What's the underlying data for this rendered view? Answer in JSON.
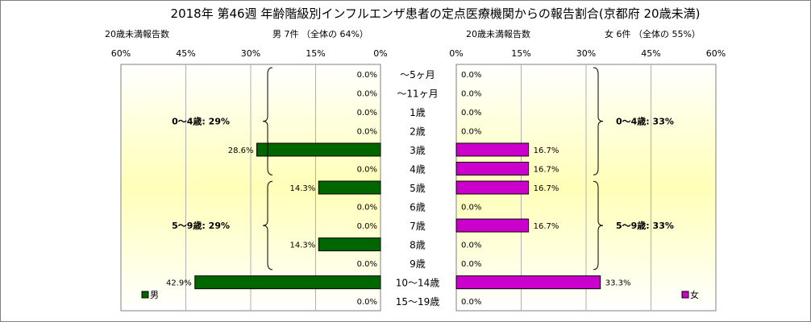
{
  "chart_data": {
    "type": "bar",
    "title": "2018年 第46週 年齢階級別インフルエンザ患者の定点医療機関からの報告割合(京都府 20歳未満)",
    "categories": [
      "～5ヶ月",
      "～11ヶ月",
      "1歳",
      "2歳",
      "3歳",
      "4歳",
      "5歳",
      "6歳",
      "7歳",
      "8歳",
      "9歳",
      "10～14歳",
      "15～19歳"
    ],
    "panels": {
      "male": {
        "count_label": "20歳未満報告数",
        "summary_label": "男 7件  （全体の  64%）",
        "legend": "男",
        "color": "#006600",
        "axis_ticks": [
          "60%",
          "45%",
          "30%",
          "15%",
          "0%"
        ],
        "xlim": [
          0,
          60
        ],
        "direction": "right-to-left",
        "values": [
          0.0,
          0.0,
          0.0,
          0.0,
          28.6,
          0.0,
          14.3,
          0.0,
          0.0,
          14.3,
          0.0,
          42.9,
          0.0
        ],
        "value_labels": [
          "0.0%",
          "0.0%",
          "0.0%",
          "0.0%",
          "28.6%",
          "0.0%",
          "14.3%",
          "0.0%",
          "0.0%",
          "14.3%",
          "0.0%",
          "42.9%",
          "0.0%"
        ],
        "brackets": [
          {
            "label": "0～4歳: 29%",
            "from": 0,
            "to": 5
          },
          {
            "label": "5～9歳: 29%",
            "from": 6,
            "to": 10
          }
        ]
      },
      "female": {
        "count_label": "20歳未満報告数",
        "summary_label": "女 6件  （全体の  55%）",
        "legend": "女",
        "color": "#cc00cc",
        "axis_ticks": [
          "0%",
          "15%",
          "30%",
          "45%",
          "60%"
        ],
        "xlim": [
          0,
          60
        ],
        "direction": "left-to-right",
        "values": [
          0.0,
          0.0,
          0.0,
          0.0,
          16.7,
          16.7,
          16.7,
          0.0,
          16.7,
          0.0,
          0.0,
          33.3,
          0.0
        ],
        "value_labels": [
          "0.0%",
          "0.0%",
          "0.0%",
          "0.0%",
          "16.7%",
          "16.7%",
          "16.7%",
          "0.0%",
          "16.7%",
          "0.0%",
          "0.0%",
          "33.3%",
          "0.0%"
        ],
        "brackets": [
          {
            "label": "0～4歳: 33%",
            "from": 0,
            "to": 5
          },
          {
            "label": "5～9歳: 33%",
            "from": 6,
            "to": 10
          }
        ]
      }
    },
    "grid": true
  }
}
